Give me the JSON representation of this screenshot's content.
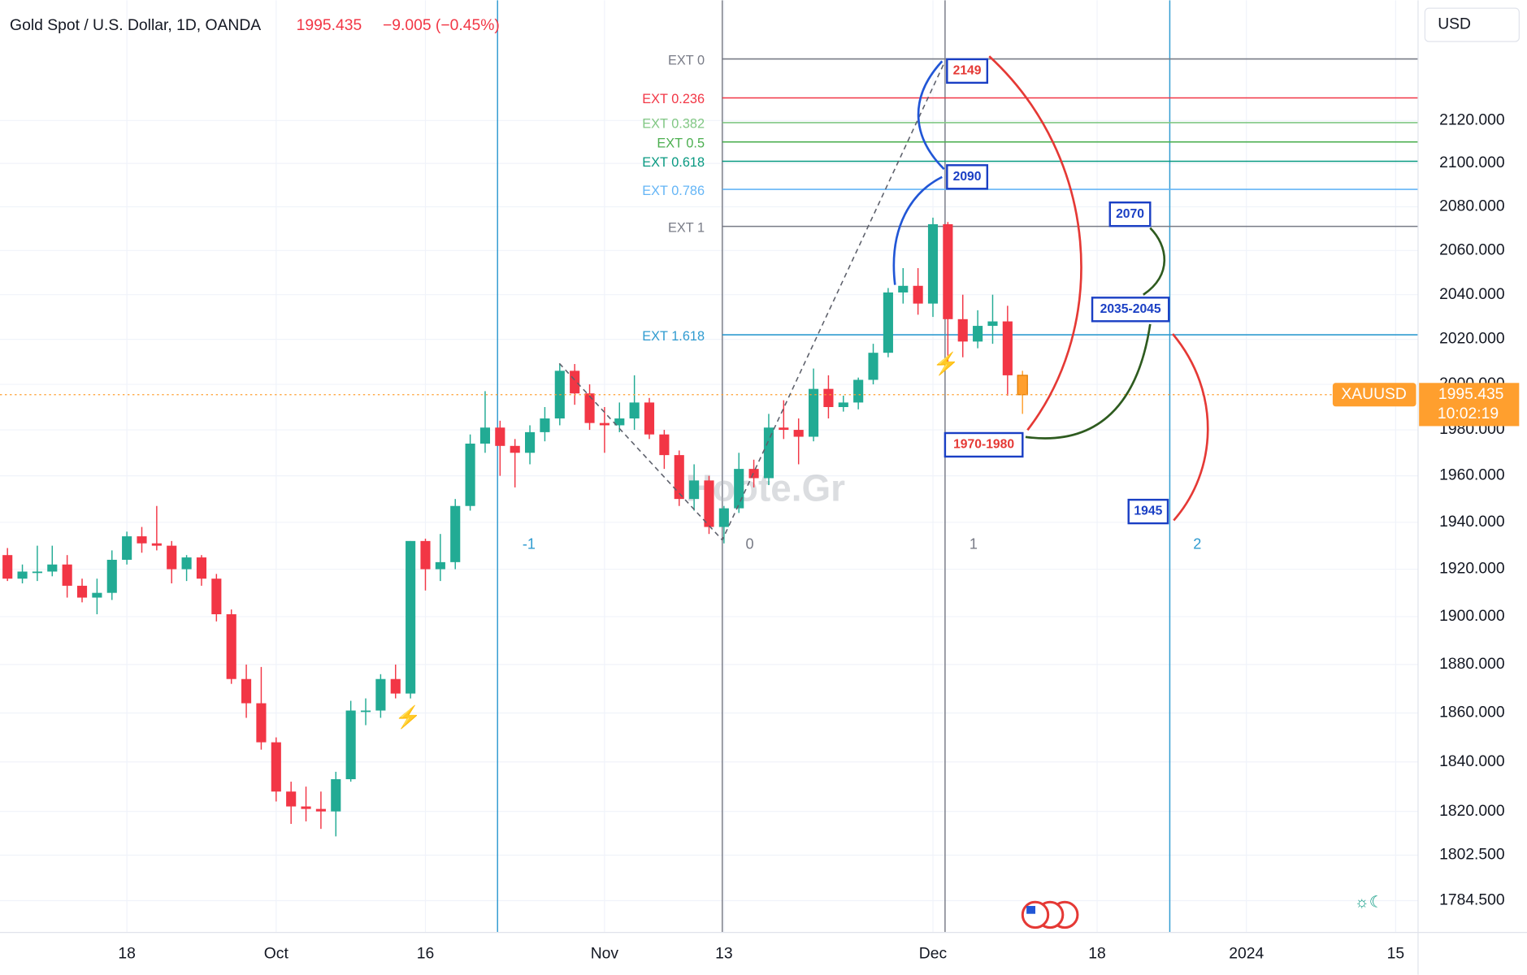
{
  "chart_data": {
    "type": "candlestick",
    "title": "Gold Spot / U.S. Dollar, 1D, OANDA",
    "change": "−9.005 (−0.45%)",
    "currency": "USD",
    "symbol": "XAUUSD",
    "countdown": "10:02:19",
    "watermark": "Hoote.Gr",
    "log_scale": true,
    "grid": true,
    "up_color": "#22ab94",
    "down_color": "#f23645",
    "last_color": "#ff9f2e",
    "ylim": [
      1772,
      2177
    ],
    "yticks": [
      {
        "value": 2120,
        "label": "2120.000"
      },
      {
        "value": 2100,
        "label": "2100.000"
      },
      {
        "value": 2080,
        "label": "2080.000"
      },
      {
        "value": 2060,
        "label": "2060.000"
      },
      {
        "value": 2040,
        "label": "2040.000"
      },
      {
        "value": 2020,
        "label": "2020.000"
      },
      {
        "value": 2000,
        "label": "2000.000"
      },
      {
        "value": 1980,
        "label": "1980.000"
      },
      {
        "value": 1960,
        "label": "1960.000"
      },
      {
        "value": 1940,
        "label": "1940.000"
      },
      {
        "value": 1920,
        "label": "1920.000"
      },
      {
        "value": 1900,
        "label": "1900.000"
      },
      {
        "value": 1880,
        "label": "1880.000"
      },
      {
        "value": 1860,
        "label": "1860.000"
      },
      {
        "value": 1840,
        "label": "1840.000"
      },
      {
        "value": 1820,
        "label": "1820.000"
      },
      {
        "value": 1802.5,
        "label": "1802.500"
      },
      {
        "value": 1784.5,
        "label": "1784.500"
      }
    ],
    "categories": [
      null,
      null,
      null,
      null,
      null,
      null,
      null,
      null,
      "18",
      null,
      null,
      null,
      null,
      null,
      null,
      null,
      null,
      null,
      "Oct",
      null,
      null,
      null,
      null,
      null,
      null,
      null,
      null,
      null,
      "16",
      null,
      null,
      null,
      null,
      null,
      null,
      null,
      null,
      null,
      null,
      null,
      "Nov",
      null,
      null,
      null,
      null,
      null,
      null,
      null,
      "13",
      null,
      null,
      null,
      null,
      null,
      null,
      null,
      null,
      null,
      null,
      null,
      null,
      null,
      "Dec",
      null,
      null,
      null,
      null,
      null,
      null,
      null,
      null,
      null,
      null,
      "18",
      null,
      null,
      null,
      null,
      null,
      null,
      null,
      null,
      null,
      "2024",
      null,
      null,
      null,
      null,
      null,
      null,
      null,
      null,
      null,
      "15",
      null
    ],
    "open": [
      1926,
      1916,
      1919,
      1919,
      1922,
      1913,
      1908,
      1910,
      1924,
      1934,
      1931,
      1930,
      1920,
      1925,
      1916,
      1901,
      1874,
      1864,
      1848,
      1828,
      1822,
      1821,
      1820,
      1833,
      1861,
      1861,
      1874,
      1868,
      1932,
      1920,
      1923,
      1947,
      1974,
      1981,
      1973,
      1970,
      1979,
      1985,
      2006,
      1996,
      1983,
      1982,
      1985,
      1992,
      1978,
      1969,
      1950,
      1958,
      1938,
      1946,
      1963,
      1959,
      1981,
      1980,
      1977,
      1998,
      1990,
      1992,
      2002,
      2014,
      2041,
      2044,
      2036,
      2072,
      2029,
      2019,
      2026,
      2028,
      2004,
      null,
      null,
      null,
      null,
      null,
      null,
      null,
      null,
      null,
      null,
      null,
      null,
      null,
      null,
      null,
      null,
      null,
      null,
      null,
      null,
      null,
      null,
      null,
      null,
      null,
      null
    ],
    "high": [
      1929,
      1922,
      1930,
      1930,
      1926,
      1916,
      1916,
      1928,
      1936,
      1938,
      1947,
      1932,
      1926,
      1926,
      1918,
      1903,
      1880,
      1879,
      1850,
      1832,
      1830,
      1828,
      1836,
      1865,
      1866,
      1876,
      1880,
      1932,
      1933,
      1935,
      1950,
      1978,
      1997,
      1984,
      1976,
      1982,
      1990,
      2009,
      2009,
      2000,
      1990,
      1992,
      2004,
      1994,
      1980,
      1971,
      1965,
      1960,
      1947,
      1970,
      1967,
      1987,
      1993,
      1985,
      2007,
      2004,
      1995,
      2003,
      2018,
      2043,
      2052,
      2052,
      2075,
      2073,
      2040,
      2033,
      2040,
      2035,
      2006,
      null,
      null,
      null,
      null,
      null,
      null,
      null,
      null,
      null,
      null,
      null,
      null,
      null,
      null,
      null,
      null,
      null,
      null,
      null,
      null,
      null,
      null,
      null,
      null,
      null,
      null
    ],
    "low": [
      1915,
      1914,
      1915,
      1917,
      1908,
      1906,
      1901,
      1907,
      1922,
      1927,
      1928,
      1914,
      1915,
      1913,
      1898,
      1872,
      1858,
      1845,
      1824,
      1815,
      1816,
      1813,
      1810,
      1832,
      1855,
      1858,
      1866,
      1866,
      1911,
      1915,
      1920,
      1945,
      1970,
      1960,
      1955,
      1965,
      1975,
      1982,
      1991,
      1980,
      1970,
      1979,
      1980,
      1976,
      1963,
      1947,
      1945,
      1935,
      1931,
      1944,
      1955,
      1956,
      1976,
      1965,
      1975,
      1985,
      1988,
      1989,
      2000,
      2012,
      2036,
      2031,
      2030,
      2010,
      2012,
      2016,
      2018,
      1995,
      1987,
      null,
      null,
      null,
      null,
      null,
      null,
      null,
      null,
      null,
      null,
      null,
      null,
      null,
      null,
      null,
      null,
      null,
      null,
      null,
      null,
      null,
      null,
      null,
      null,
      null,
      null
    ],
    "close": [
      1916,
      1919,
      1919,
      1922,
      1913,
      1908,
      1910,
      1924,
      1934,
      1931,
      1930,
      1920,
      1925,
      1916,
      1901,
      1874,
      1864,
      1848,
      1828,
      1822,
      1821,
      1820,
      1833,
      1861,
      1861,
      1874,
      1868,
      1932,
      1920,
      1923,
      1947,
      1974,
      1981,
      1973,
      1970,
      1979,
      1985,
      2006,
      1996,
      1983,
      1982,
      1985,
      1992,
      1978,
      1969,
      1950,
      1958,
      1938,
      1946,
      1963,
      1959,
      1981,
      1980,
      1977,
      1998,
      1990,
      1992,
      2002,
      2014,
      2041,
      2044,
      2036,
      2072,
      2029,
      2019,
      2026,
      2028,
      2004,
      1995.435,
      null,
      null,
      null,
      null,
      null,
      null,
      null,
      null,
      null,
      null,
      null,
      null,
      null,
      null,
      null,
      null,
      null,
      null,
      null,
      null,
      null,
      null,
      null,
      null,
      null,
      null
    ],
    "levels": [
      {
        "label": "EXT 0",
        "value": 2149,
        "color": "#787b86"
      },
      {
        "label": "EXT 0.236",
        "value": 2130.6,
        "color": "#f23645"
      },
      {
        "label": "EXT 0.382",
        "value": 2119,
        "color": "#81c784"
      },
      {
        "label": "EXT 0.5",
        "value": 2110,
        "color": "#4caf50"
      },
      {
        "label": "EXT 0.618",
        "value": 2101,
        "color": "#089981"
      },
      {
        "label": "EXT 0.786",
        "value": 2088,
        "color": "#64b5f6"
      },
      {
        "label": "EXT 1",
        "value": 2071,
        "color": "#787b86"
      },
      {
        "label": "EXT 1.618",
        "value": 2022,
        "color": "#2f9bd0"
      }
    ],
    "time_zones": [
      "-1",
      "0",
      "1",
      "2"
    ],
    "annotations": [
      "2149",
      "2090",
      "2070",
      "2035-2045",
      "1970-1980",
      "1945"
    ]
  }
}
